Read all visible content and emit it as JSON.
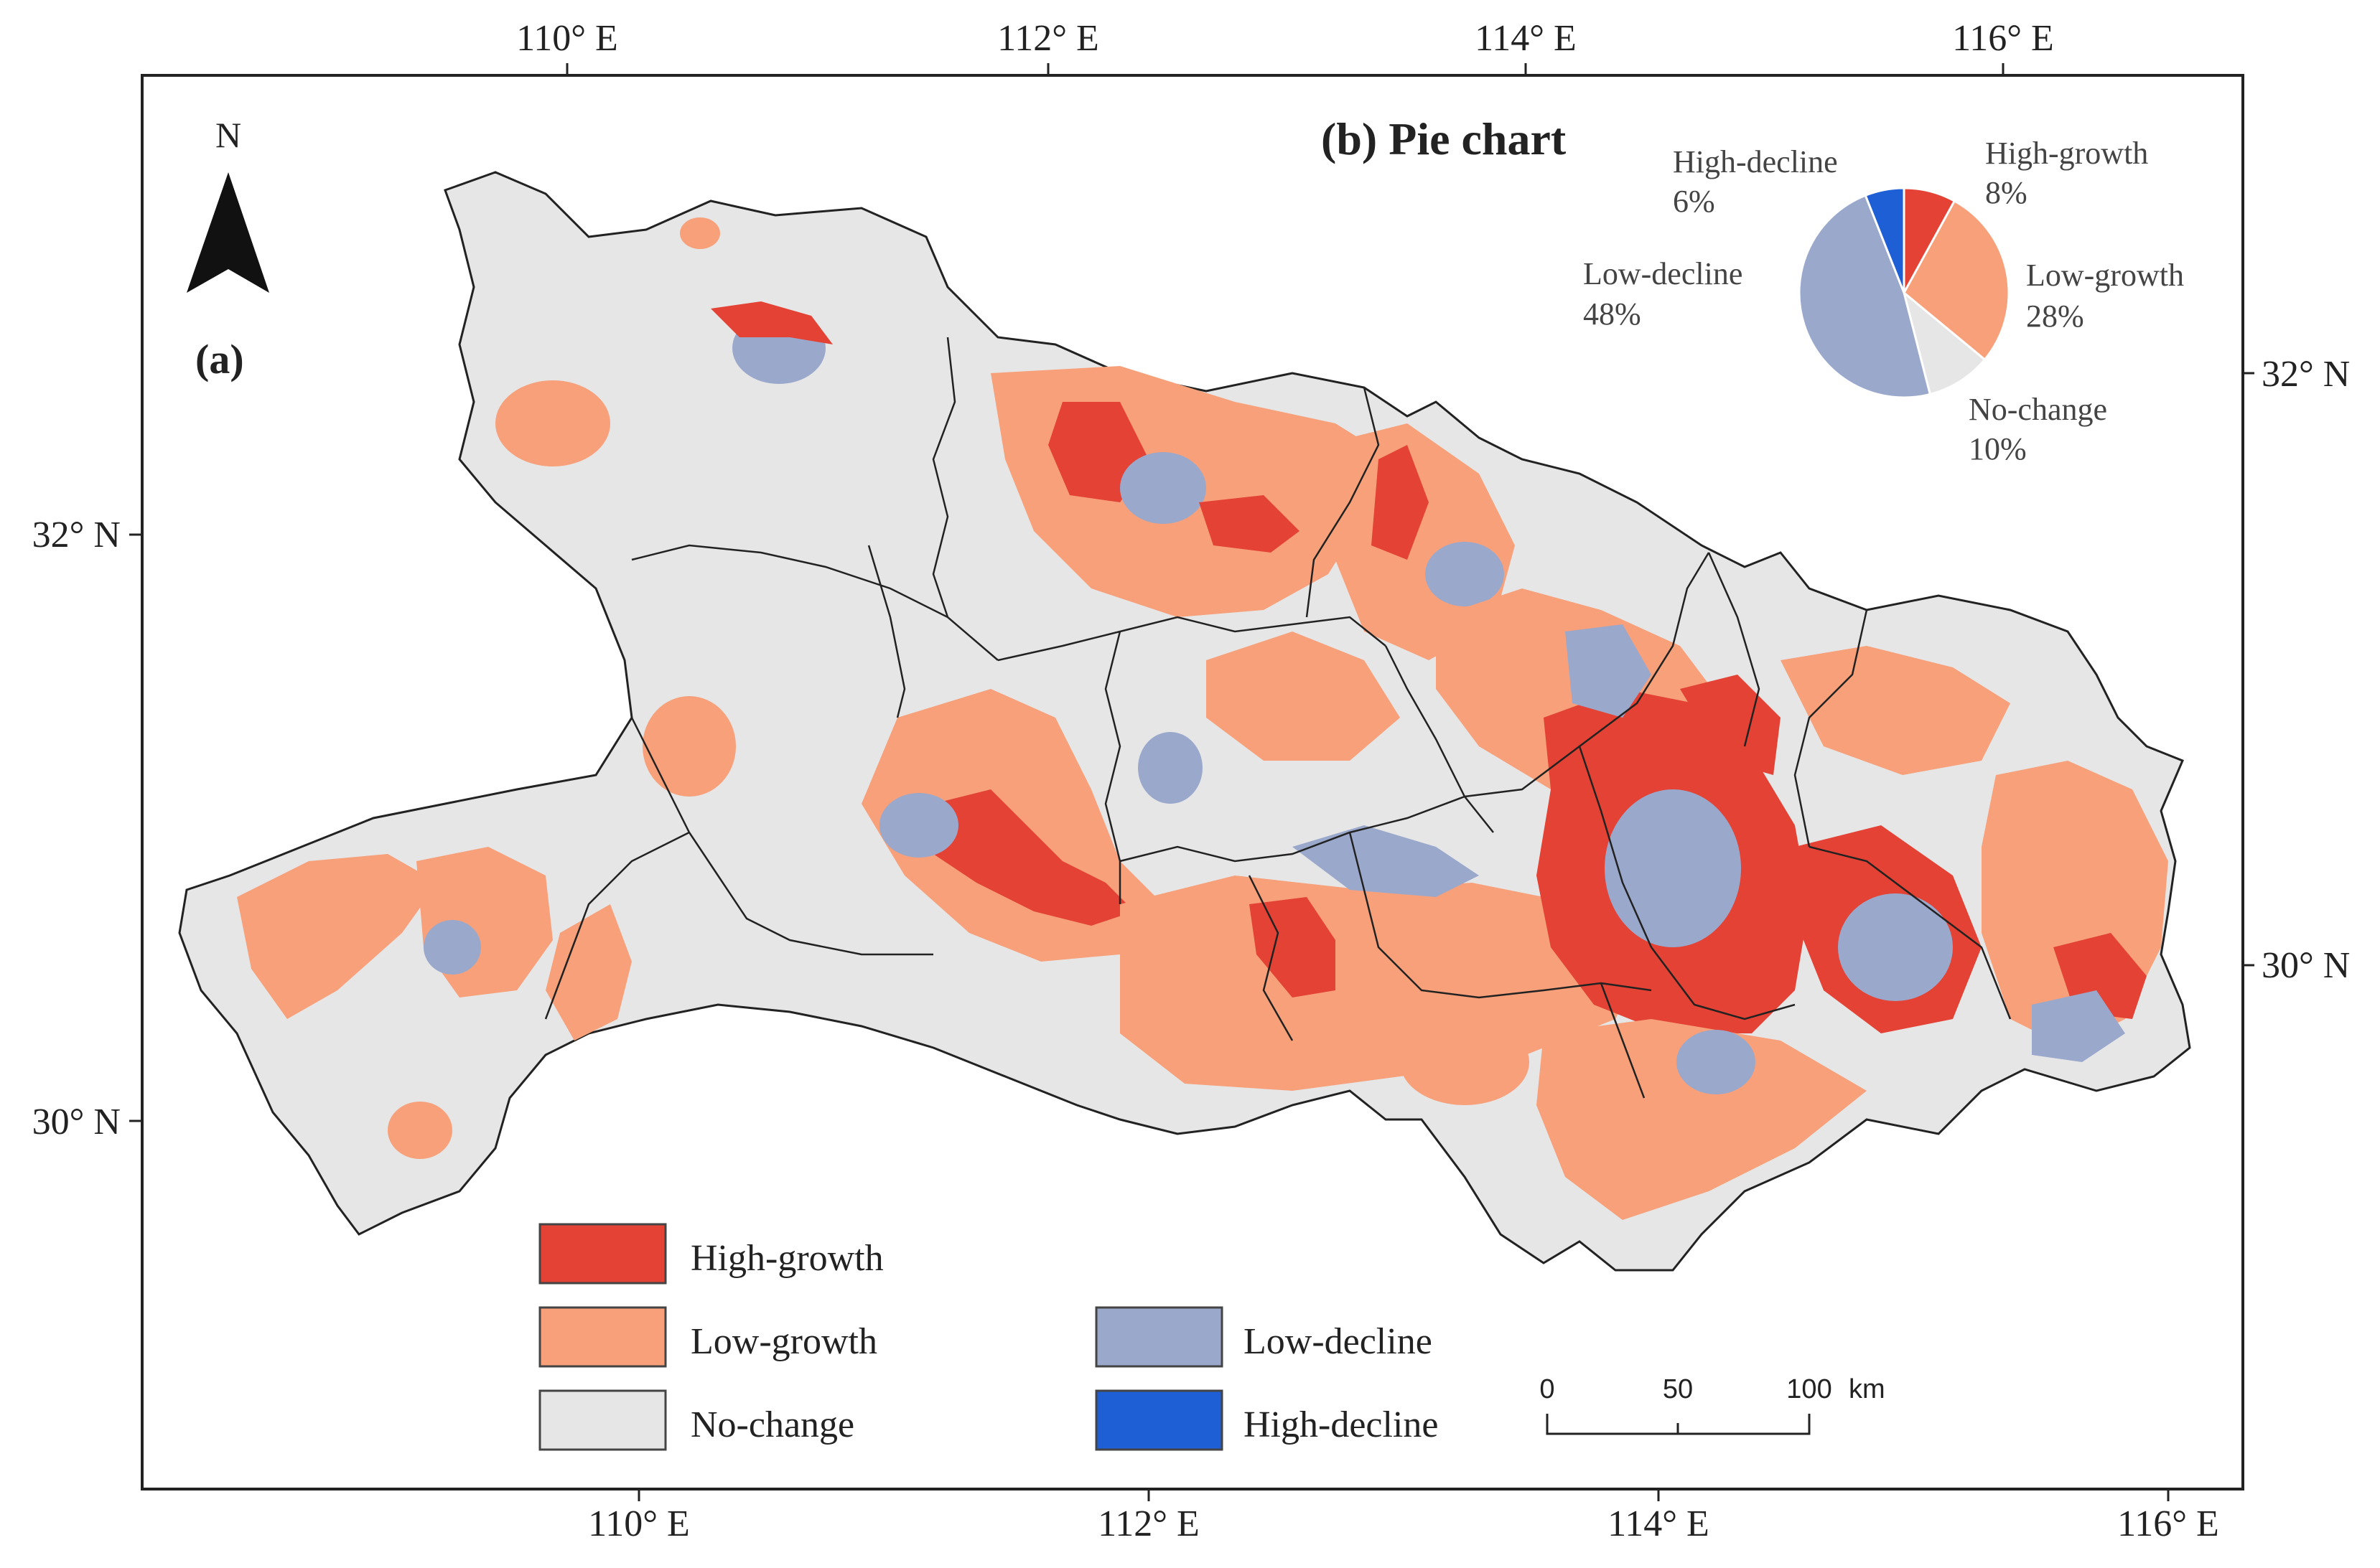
{
  "map": {
    "panel_label": "(a)",
    "north_label": "N",
    "lon_labels_top": [
      "110° E",
      "112° E",
      "114° E",
      "116° E"
    ],
    "lon_labels_bottom": [
      "110° E",
      "112° E",
      "114° E",
      "116° E"
    ],
    "lat_labels_left": [
      "32° N",
      "30° N"
    ],
    "lat_labels_right": [
      "32° N",
      "30° N"
    ],
    "colors": {
      "high_growth": "#e34234",
      "low_growth": "#f7a07a",
      "no_change": "#e6e6e6",
      "low_decline": "#9aa8cc",
      "high_decline": "#1f5fd6",
      "boundary": "#333333"
    }
  },
  "pie": {
    "title": "(b) Pie chart"
  },
  "chart_data": {
    "type": "pie",
    "title": "(b) Pie chart",
    "slices": [
      {
        "label": "High-growth",
        "value": 8,
        "display": "8%",
        "color": "#e34234"
      },
      {
        "label": "Low-growth",
        "value": 28,
        "display": "28%",
        "color": "#f7a07a"
      },
      {
        "label": "No-change",
        "value": 10,
        "display": "10%",
        "color": "#e6e6e6"
      },
      {
        "label": "Low-decline",
        "value": 48,
        "display": "48%",
        "color": "#9aa8cc"
      },
      {
        "label": "High-decline",
        "value": 6,
        "display": "6%",
        "color": "#1f5fd6"
      }
    ]
  },
  "legend": {
    "items": [
      {
        "label": "High-growth",
        "color": "#e34234"
      },
      {
        "label": "Low-growth",
        "color": "#f7a07a"
      },
      {
        "label": "No-change",
        "color": "#e6e6e6"
      },
      {
        "label": "Low-decline",
        "color": "#9aa8cc"
      },
      {
        "label": "High-decline",
        "color": "#1f5fd6"
      }
    ]
  },
  "scale_bar": {
    "labels": [
      "0",
      "50",
      "100"
    ],
    "unit": "km"
  }
}
